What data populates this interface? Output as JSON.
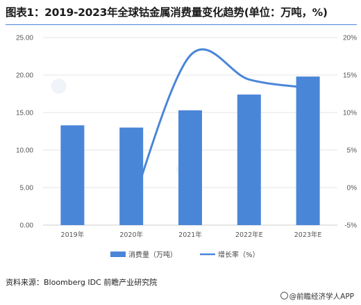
{
  "title": "图表1：2019-2023年全球钴金属消费量变化趋势(单位：万吨，%)",
  "source": "资料来源：Bloomberg IDC 前瞻产业研究院",
  "brand": "@前瞻经济学人APP",
  "colors": {
    "bar": "#4a86d8",
    "line": "#4a86d8",
    "title_rule": "#4a86d8"
  },
  "chart_data": {
    "type": "bar",
    "categories": [
      "2019年",
      "2020年",
      "2021年",
      "2022年E",
      "2023年E"
    ],
    "series": [
      {
        "name": "消费量（万吨）",
        "type": "bar",
        "axis": "left",
        "values": [
          13.3,
          13.0,
          15.3,
          17.4,
          19.8
        ]
      },
      {
        "name": "增长率（%）",
        "type": "line",
        "axis": "right",
        "smooth": true,
        "values": [
          null,
          -2.6,
          17.6,
          14.4,
          13.3
        ]
      }
    ],
    "y_left": {
      "ylim": [
        0,
        25
      ],
      "ticks": [
        "0.00",
        "5.00",
        "10.00",
        "15.00",
        "20.00",
        "25.00"
      ]
    },
    "y_right": {
      "ylim": [
        -5,
        20
      ],
      "ticks": [
        "-5%",
        "0%",
        "5%",
        "10%",
        "15%",
        "20%"
      ]
    },
    "grid": true,
    "legend": "bottom-center"
  }
}
